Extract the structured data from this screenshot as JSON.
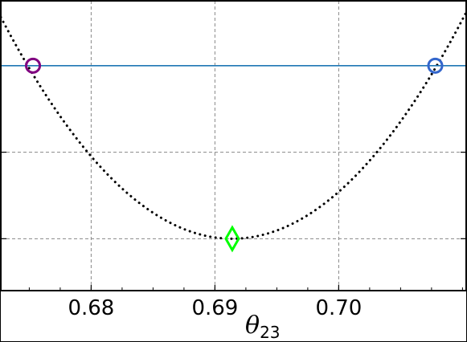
{
  "chart_data": {
    "type": "line",
    "xlabel": "θ",
    "xlabel_sub": "23",
    "xlim": [
      0.6727,
      0.7103
    ],
    "ylim": [
      -0.6,
      2.75
    ],
    "grid": true,
    "x_ticks": [
      0.68,
      0.69,
      0.7
    ],
    "x_tick_labels": [
      "0.68",
      "0.69",
      "0.70"
    ],
    "y_ticks": [
      0,
      1,
      2,
      3
    ],
    "y_tick_labels_shown": false,
    "series": [
      {
        "style": "dotted",
        "color": "#000000",
        "curve": "parabola",
        "vertex": [
          0.6914,
          0
        ],
        "x": [
          0.6727,
          0.6753,
          0.68,
          0.685,
          0.6914,
          0.695,
          0.7,
          0.705,
          0.7078,
          0.7103
        ],
        "y": [
          2.3,
          2.0,
          1.32,
          0.72,
          0.0,
          0.26,
          0.96,
          1.65,
          2.0,
          2.35
        ]
      },
      {
        "style": "solid",
        "color": "#1f77b4",
        "horizontal_line_y": 2.0
      }
    ],
    "markers": [
      {
        "shape": "circle",
        "color": "#800080",
        "x": 0.6753,
        "y": 2.0
      },
      {
        "shape": "thin-diamond",
        "color": "#00ff00",
        "x": 0.6914,
        "y": 0.0
      },
      {
        "shape": "circle",
        "color": "#3366cc",
        "x": 0.7078,
        "y": 2.0
      }
    ]
  }
}
